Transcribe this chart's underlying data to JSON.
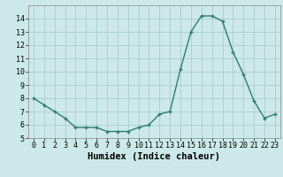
{
  "x": [
    0,
    1,
    2,
    3,
    4,
    5,
    6,
    7,
    8,
    9,
    10,
    11,
    12,
    13,
    14,
    15,
    16,
    17,
    18,
    19,
    20,
    21,
    22,
    23
  ],
  "y": [
    8.0,
    7.5,
    7.0,
    6.5,
    5.8,
    5.8,
    5.8,
    5.5,
    5.5,
    5.5,
    5.8,
    6.0,
    6.8,
    7.0,
    10.2,
    13.0,
    14.2,
    14.2,
    13.8,
    11.5,
    9.8,
    7.8,
    6.5,
    6.8
  ],
  "line_color": "#2e7d6e",
  "marker": "+",
  "marker_size": 3.5,
  "marker_linewidth": 1.0,
  "background_color": "#cce8e8",
  "grid_color": "#aacece",
  "xlabel": "Humidex (Indice chaleur)",
  "ylim": [
    5,
    15
  ],
  "xlim": [
    -0.5,
    23.5
  ],
  "yticks": [
    5,
    6,
    7,
    8,
    9,
    10,
    11,
    12,
    13,
    14
  ],
  "xticks": [
    0,
    1,
    2,
    3,
    4,
    5,
    6,
    7,
    8,
    9,
    10,
    11,
    12,
    13,
    14,
    15,
    16,
    17,
    18,
    19,
    20,
    21,
    22,
    23
  ],
  "tick_fontsize": 6,
  "xlabel_fontsize": 7.5,
  "line_width": 1.0
}
